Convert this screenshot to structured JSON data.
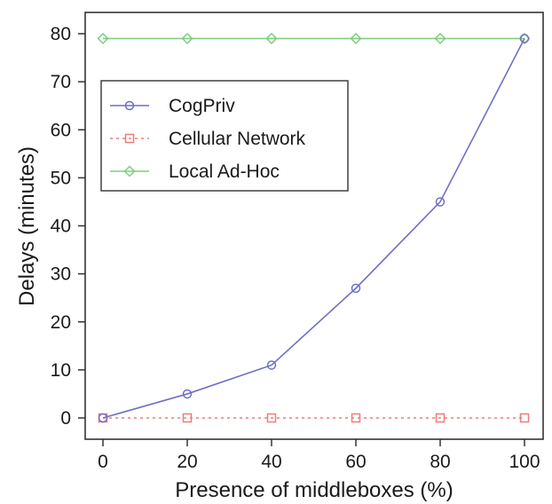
{
  "chart_data": {
    "type": "line",
    "title": "",
    "xlabel": "Presence of middleboxes (%)",
    "ylabel": "Delays (minutes)",
    "x": [
      0,
      20,
      40,
      60,
      80,
      100
    ],
    "xticks": [
      0,
      20,
      40,
      60,
      80,
      100
    ],
    "yticks": [
      0,
      10,
      20,
      30,
      40,
      50,
      60,
      70,
      80
    ],
    "xlim": [
      0,
      100
    ],
    "ylim": [
      0,
      80
    ],
    "grid": false,
    "legend_position": "top-left",
    "series": [
      {
        "name": "CogPriv",
        "values": [
          0,
          5,
          11,
          27,
          45,
          79
        ],
        "color": "#6f6fc8",
        "marker": "circle",
        "dash": "solid"
      },
      {
        "name": "Cellular Network",
        "values": [
          0,
          0,
          0,
          0,
          0,
          0
        ],
        "color": "#f07a7a",
        "marker": "square",
        "dash": "dotted"
      },
      {
        "name": "Local Ad-Hoc",
        "values": [
          79,
          79,
          79,
          79,
          79,
          79
        ],
        "color": "#7fcf7f",
        "marker": "diamond",
        "dash": "solid"
      }
    ]
  }
}
